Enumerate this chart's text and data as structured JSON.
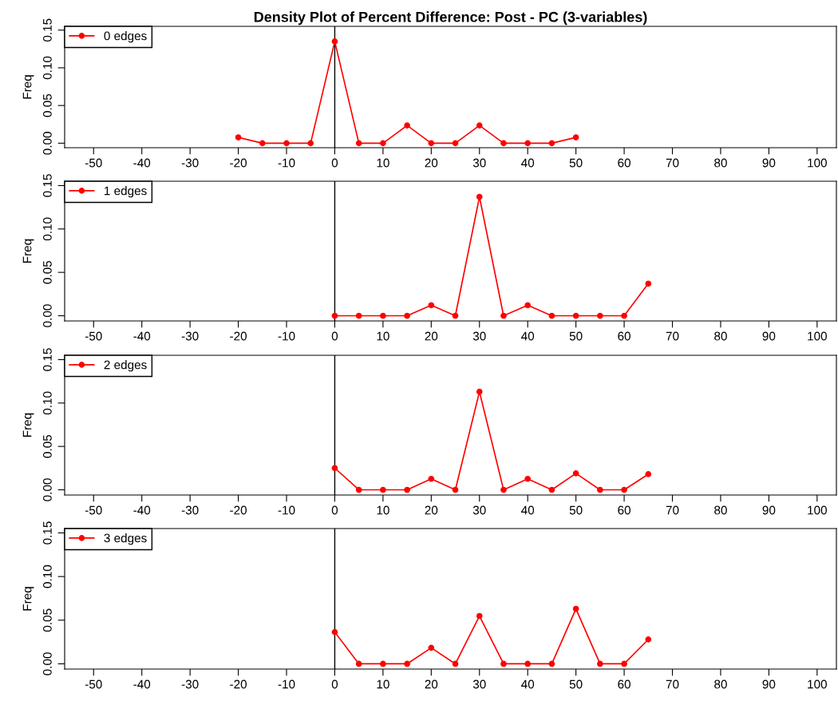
{
  "chart_data": [
    {
      "type": "line",
      "title": "Density Plot of Percent Difference: Post - PC (3-variables)",
      "ylabel": "Freq",
      "xlim": [
        -56,
        104
      ],
      "xticks": [
        -50,
        -40,
        -30,
        -20,
        -10,
        0,
        10,
        20,
        30,
        40,
        50,
        60,
        70,
        80,
        90,
        100
      ],
      "ylim": [
        -0.006,
        0.155
      ],
      "yticks": [
        {
          "value": 0,
          "label": "0.00"
        },
        {
          "value": 0.05,
          "label": "0.05"
        },
        {
          "value": 0.1,
          "label": "0.10"
        },
        {
          "value": 0.15,
          "label": "0.15"
        }
      ],
      "legend": "top left",
      "marker": "circle",
      "grid": false,
      "ref_lines": [
        {
          "axis": "x",
          "value": 0,
          "color": "#000000"
        }
      ],
      "series": [
        {
          "name": "0 edges",
          "color": "#ff0000",
          "x": [
            -20,
            -15,
            -10,
            -5,
            0,
            5,
            10,
            15,
            20,
            25,
            30,
            35,
            40,
            45,
            50
          ],
          "values": [
            0.0077,
            0,
            0,
            0,
            0.135,
            0,
            0,
            0.0235,
            0,
            0,
            0.0235,
            0,
            0,
            0,
            0.0077
          ]
        }
      ]
    },
    {
      "type": "line",
      "ylabel": "Freq",
      "xlim": [
        -56,
        104
      ],
      "xticks": [
        -50,
        -40,
        -30,
        -20,
        -10,
        0,
        10,
        20,
        30,
        40,
        50,
        60,
        70,
        80,
        90,
        100
      ],
      "ylim": [
        -0.006,
        0.155
      ],
      "yticks": [
        {
          "value": 0,
          "label": "0.00"
        },
        {
          "value": 0.05,
          "label": "0.05"
        },
        {
          "value": 0.1,
          "label": "0.10"
        },
        {
          "value": 0.15,
          "label": "0.15"
        }
      ],
      "legend": "top left",
      "marker": "circle",
      "grid": false,
      "ref_lines": [
        {
          "axis": "x",
          "value": 0,
          "color": "#000000"
        }
      ],
      "series": [
        {
          "name": "1 edges",
          "color": "#ff0000",
          "x": [
            0,
            5,
            10,
            15,
            20,
            25,
            30,
            35,
            40,
            45,
            50,
            55,
            60,
            65
          ],
          "values": [
            0,
            0,
            0,
            0,
            0.0122,
            0,
            0.137,
            0,
            0.0122,
            0,
            0,
            0,
            0,
            0.037
          ]
        }
      ]
    },
    {
      "type": "line",
      "ylabel": "Freq",
      "xlim": [
        -56,
        104
      ],
      "xticks": [
        -50,
        -40,
        -30,
        -20,
        -10,
        0,
        10,
        20,
        30,
        40,
        50,
        60,
        70,
        80,
        90,
        100
      ],
      "ylim": [
        -0.006,
        0.155
      ],
      "yticks": [
        {
          "value": 0,
          "label": "0.00"
        },
        {
          "value": 0.05,
          "label": "0.05"
        },
        {
          "value": 0.1,
          "label": "0.10"
        },
        {
          "value": 0.15,
          "label": "0.15"
        }
      ],
      "legend": "top left",
      "marker": "circle",
      "grid": false,
      "ref_lines": [
        {
          "axis": "x",
          "value": 0,
          "color": "#000000"
        }
      ],
      "series": [
        {
          "name": "2 edges",
          "color": "#ff0000",
          "x": [
            0,
            5,
            10,
            15,
            20,
            25,
            30,
            35,
            40,
            45,
            50,
            55,
            60,
            65
          ],
          "values": [
            0.025,
            0,
            0,
            0,
            0.0126,
            0,
            0.113,
            0,
            0.0126,
            0,
            0.019,
            0,
            0,
            0.018
          ]
        }
      ]
    },
    {
      "type": "line",
      "ylabel": "Freq",
      "xlim": [
        -56,
        104
      ],
      "xticks": [
        -50,
        -40,
        -30,
        -20,
        -10,
        0,
        10,
        20,
        30,
        40,
        50,
        60,
        70,
        80,
        90,
        100
      ],
      "ylim": [
        -0.006,
        0.155
      ],
      "yticks": [
        {
          "value": 0,
          "label": "0.00"
        },
        {
          "value": 0.05,
          "label": "0.05"
        },
        {
          "value": 0.1,
          "label": "0.10"
        },
        {
          "value": 0.15,
          "label": "0.15"
        }
      ],
      "legend": "top left",
      "marker": "circle",
      "grid": false,
      "ref_lines": [
        {
          "axis": "x",
          "value": 0,
          "color": "#000000"
        }
      ],
      "series": [
        {
          "name": "3 edges",
          "color": "#ff0000",
          "x": [
            0,
            5,
            10,
            15,
            20,
            25,
            30,
            35,
            40,
            45,
            50,
            55,
            60,
            65
          ],
          "values": [
            0.0364,
            0,
            0,
            0,
            0.0184,
            0,
            0.0548,
            0,
            0,
            0,
            0.063,
            0,
            0,
            0.028
          ]
        }
      ]
    }
  ]
}
